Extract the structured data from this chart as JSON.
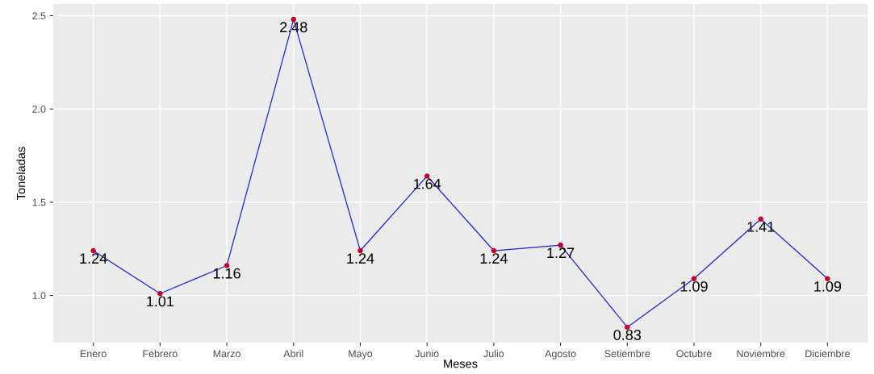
{
  "chart_data": {
    "type": "line",
    "xlabel": "Meses",
    "ylabel": "Toneladas",
    "categories": [
      "Enero",
      "Febrero",
      "Marzo",
      "Abril",
      "Mayo",
      "Junio",
      "Julio",
      "Agosto",
      "Setiembre",
      "Octubre",
      "Noviembre",
      "Diciembre"
    ],
    "series": [
      {
        "color": "#2222cc",
        "colors": [
          "#c0002a",
          "#c0002a",
          "#c0002a",
          "#c0002a",
          "#c0002a",
          "#c0002a",
          "#c0002a",
          "#c0002a",
          "#c0002a",
          "#c0002a",
          "#c0002a",
          "#c0002a"
        ],
        "values": [
          1.24,
          1.01,
          1.16,
          2.48,
          1.24,
          1.64,
          1.24,
          1.27,
          0.83,
          1.09,
          1.41,
          1.09
        ]
      }
    ],
    "ylim": [
      0.7475,
      2.5625
    ],
    "yticks": [
      {
        "value": 1.0,
        "label": "1.0"
      },
      {
        "value": 1.5,
        "label": "1.5"
      },
      {
        "value": 2.0,
        "label": "2.0"
      },
      {
        "value": 2.5,
        "label": "2.5"
      }
    ],
    "grid": true,
    "marker": "circle",
    "line_style": "solid",
    "data_labels": true
  }
}
